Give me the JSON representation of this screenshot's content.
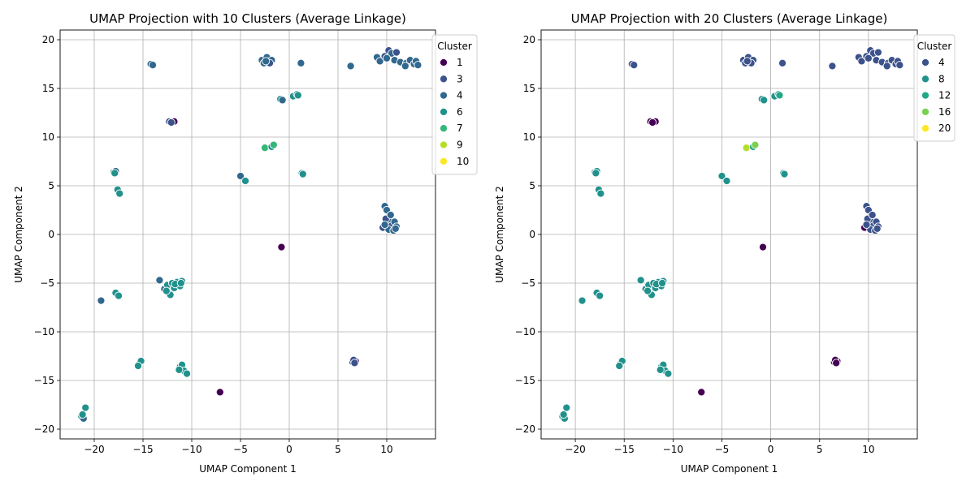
{
  "chart_data": [
    {
      "type": "scatter",
      "title": "UMAP Projection with 10 Clusters (Average Linkage)",
      "xlabel": "UMAP Component 1",
      "ylabel": "UMAP Component 2",
      "xlim": [
        -23.5,
        15
      ],
      "ylim": [
        -21,
        21
      ],
      "xticks": [
        -20,
        -15,
        -10,
        -5,
        0,
        5,
        10
      ],
      "yticks": [
        -20,
        -15,
        -10,
        -5,
        0,
        5,
        10,
        15,
        20
      ],
      "grid": true,
      "legend": {
        "title": "Cluster",
        "placement": "right",
        "entries": [
          {
            "label": "1",
            "color": "#440154"
          },
          {
            "label": "3",
            "color": "#3b528b"
          },
          {
            "label": "4",
            "color": "#31688e"
          },
          {
            "label": "6",
            "color": "#21918c"
          },
          {
            "label": "7",
            "color": "#35b779"
          },
          {
            "label": "9",
            "color": "#b5de2b"
          },
          {
            "label": "10",
            "color": "#fde725"
          }
        ]
      },
      "points": [
        [
          -14.2,
          17.5,
          "#31688e"
        ],
        [
          -14.0,
          17.4,
          "#31688e"
        ],
        [
          -2.8,
          17.9,
          "#31688e"
        ],
        [
          -2.3,
          18.2,
          "#31688e"
        ],
        [
          -2.6,
          17.6,
          "#31688e"
        ],
        [
          -1.8,
          17.9,
          "#31688e"
        ],
        [
          -2.0,
          17.6,
          "#3b528b"
        ],
        [
          -2.4,
          17.8,
          "#31688e"
        ],
        [
          1.2,
          17.6,
          "#31688e"
        ],
        [
          6.3,
          17.3,
          "#31688e"
        ],
        [
          9.0,
          18.2,
          "#31688e"
        ],
        [
          9.3,
          17.8,
          "#31688e"
        ],
        [
          9.8,
          18.3,
          "#3b528b"
        ],
        [
          10.2,
          18.9,
          "#3b528b"
        ],
        [
          10.5,
          18.6,
          "#31688e"
        ],
        [
          10.8,
          17.9,
          "#31688e"
        ],
        [
          11.0,
          18.7,
          "#3b528b"
        ],
        [
          11.4,
          17.7,
          "#31688e"
        ],
        [
          12.0,
          17.6,
          "#31688e"
        ],
        [
          12.4,
          17.9,
          "#31688e"
        ],
        [
          12.8,
          17.5,
          "#31688e"
        ],
        [
          13.0,
          17.8,
          "#31688e"
        ],
        [
          13.2,
          17.4,
          "#31688e"
        ],
        [
          10.0,
          18.1,
          "#31688e"
        ],
        [
          11.9,
          17.3,
          "#31688e"
        ],
        [
          -12.3,
          11.6,
          "#3b528b"
        ],
        [
          -11.8,
          11.6,
          "#440154"
        ],
        [
          -12.1,
          11.5,
          "#3b528b"
        ],
        [
          -0.9,
          13.9,
          "#21918c"
        ],
        [
          -0.7,
          13.8,
          "#31688e"
        ],
        [
          0.4,
          14.2,
          "#21918c"
        ],
        [
          0.8,
          14.4,
          "#21918c"
        ],
        [
          0.9,
          14.3,
          "#21918c"
        ],
        [
          -2.5,
          8.9,
          "#35b779"
        ],
        [
          -1.8,
          9.0,
          "#21918c"
        ],
        [
          -1.6,
          9.2,
          "#35b779"
        ],
        [
          -18.0,
          6.4,
          "#21918c"
        ],
        [
          -17.8,
          6.5,
          "#31688e"
        ],
        [
          -17.9,
          6.3,
          "#21918c"
        ],
        [
          -17.6,
          4.6,
          "#21918c"
        ],
        [
          -17.4,
          4.2,
          "#21918c"
        ],
        [
          -5.0,
          6.0,
          "#31688e"
        ],
        [
          -4.5,
          5.5,
          "#21918c"
        ],
        [
          1.3,
          6.3,
          "#21918c"
        ],
        [
          1.4,
          6.2,
          "#21918c"
        ],
        [
          9.8,
          2.9,
          "#31688e"
        ],
        [
          10.0,
          2.5,
          "#31688e"
        ],
        [
          9.6,
          0.7,
          "#3b528b"
        ],
        [
          10.0,
          1.2,
          "#31688e"
        ],
        [
          10.3,
          1.5,
          "#31688e"
        ],
        [
          10.5,
          0.9,
          "#3b528b"
        ],
        [
          10.8,
          1.3,
          "#31688e"
        ],
        [
          11.0,
          0.8,
          "#31688e"
        ],
        [
          10.2,
          0.5,
          "#31688e"
        ],
        [
          10.7,
          0.4,
          "#31688e"
        ],
        [
          9.9,
          1.6,
          "#3b528b"
        ],
        [
          10.4,
          2.0,
          "#31688e"
        ],
        [
          10.9,
          0.6,
          "#31688e"
        ],
        [
          9.8,
          1.0,
          "#31688e"
        ],
        [
          -0.8,
          -1.3,
          "#440154"
        ],
        [
          -13.3,
          -4.7,
          "#31688e"
        ],
        [
          -12.8,
          -5.6,
          "#31688e"
        ],
        [
          -12.5,
          -5.2,
          "#21918c"
        ],
        [
          -12.2,
          -6.2,
          "#21918c"
        ],
        [
          -12.0,
          -5.0,
          "#21918c"
        ],
        [
          -11.8,
          -5.5,
          "#21918c"
        ],
        [
          -11.5,
          -4.9,
          "#21918c"
        ],
        [
          -11.2,
          -5.3,
          "#21918c"
        ],
        [
          -11.0,
          -4.8,
          "#21918c"
        ],
        [
          -12.6,
          -5.8,
          "#21918c"
        ],
        [
          -11.7,
          -5.1,
          "#21918c"
        ],
        [
          -11.1,
          -5.0,
          "#21918c"
        ],
        [
          -17.8,
          -6.0,
          "#21918c"
        ],
        [
          -17.5,
          -6.3,
          "#21918c"
        ],
        [
          -19.3,
          -6.8,
          "#31688e"
        ],
        [
          -15.4,
          -13.3,
          "#21918c"
        ],
        [
          -15.2,
          -13.0,
          "#21918c"
        ],
        [
          -15.5,
          -13.5,
          "#21918c"
        ],
        [
          -11.2,
          -13.6,
          "#21918c"
        ],
        [
          -11.0,
          -13.4,
          "#21918c"
        ],
        [
          -10.8,
          -14.0,
          "#21918c"
        ],
        [
          -10.5,
          -14.3,
          "#21918c"
        ],
        [
          -11.3,
          -13.9,
          "#21918c"
        ],
        [
          -7.1,
          -16.2,
          "#440154"
        ],
        [
          6.5,
          -13.1,
          "#3b528b"
        ],
        [
          6.8,
          -13.0,
          "#440154"
        ],
        [
          6.6,
          -12.9,
          "#3b528b"
        ],
        [
          6.7,
          -13.2,
          "#3b528b"
        ],
        [
          -21.3,
          -18.7,
          "#21918c"
        ],
        [
          -21.1,
          -18.9,
          "#31688e"
        ],
        [
          -20.9,
          -17.8,
          "#21918c"
        ],
        [
          -21.2,
          -18.5,
          "#21918c"
        ]
      ]
    },
    {
      "type": "scatter",
      "title": "UMAP Projection with 20 Clusters (Average Linkage)",
      "xlabel": "UMAP Component 1",
      "ylabel": "UMAP Component 2",
      "xlim": [
        -23.5,
        15
      ],
      "ylim": [
        -21,
        21
      ],
      "xticks": [
        -20,
        -15,
        -10,
        -5,
        0,
        5,
        10
      ],
      "yticks": [
        -20,
        -15,
        -10,
        -5,
        0,
        5,
        10,
        15,
        20
      ],
      "grid": true,
      "legend": {
        "title": "Cluster",
        "placement": "right",
        "entries": [
          {
            "label": "4",
            "color": "#3b528b"
          },
          {
            "label": "8",
            "color": "#21918c"
          },
          {
            "label": "12",
            "color": "#22a884"
          },
          {
            "label": "16",
            "color": "#7ad151"
          },
          {
            "label": "20",
            "color": "#fde725"
          }
        ]
      },
      "points": [
        [
          -14.2,
          17.5,
          "#3b528b"
        ],
        [
          -14.0,
          17.4,
          "#3b528b"
        ],
        [
          -2.8,
          17.9,
          "#3b528b"
        ],
        [
          -2.3,
          18.2,
          "#3b528b"
        ],
        [
          -2.6,
          17.6,
          "#3b528b"
        ],
        [
          -1.8,
          17.9,
          "#3b528b"
        ],
        [
          -2.0,
          17.6,
          "#3b528b"
        ],
        [
          -2.4,
          17.8,
          "#3b528b"
        ],
        [
          1.2,
          17.6,
          "#3b528b"
        ],
        [
          6.3,
          17.3,
          "#3b528b"
        ],
        [
          9.0,
          18.2,
          "#3b528b"
        ],
        [
          9.3,
          17.8,
          "#3b528b"
        ],
        [
          9.8,
          18.3,
          "#3b528b"
        ],
        [
          10.2,
          18.9,
          "#3b528b"
        ],
        [
          10.5,
          18.6,
          "#3b528b"
        ],
        [
          10.8,
          17.9,
          "#3b528b"
        ],
        [
          11.0,
          18.7,
          "#3b528b"
        ],
        [
          11.4,
          17.7,
          "#3b528b"
        ],
        [
          12.0,
          17.6,
          "#3b528b"
        ],
        [
          12.4,
          17.9,
          "#3b528b"
        ],
        [
          12.8,
          17.5,
          "#3b528b"
        ],
        [
          13.0,
          17.8,
          "#3b528b"
        ],
        [
          13.2,
          17.4,
          "#3b528b"
        ],
        [
          10.0,
          18.1,
          "#3b528b"
        ],
        [
          11.9,
          17.3,
          "#3b528b"
        ],
        [
          -12.3,
          11.6,
          "#440154"
        ],
        [
          -11.8,
          11.6,
          "#440154"
        ],
        [
          -12.1,
          11.5,
          "#440154"
        ],
        [
          -0.9,
          13.9,
          "#21918c"
        ],
        [
          -0.7,
          13.8,
          "#21918c"
        ],
        [
          0.4,
          14.2,
          "#21918c"
        ],
        [
          0.8,
          14.4,
          "#21918c"
        ],
        [
          0.9,
          14.3,
          "#22a884"
        ],
        [
          -2.5,
          8.9,
          "#b5de2b"
        ],
        [
          -1.8,
          9.0,
          "#22a884"
        ],
        [
          -1.6,
          9.2,
          "#7ad151"
        ],
        [
          -18.0,
          6.4,
          "#21918c"
        ],
        [
          -17.8,
          6.5,
          "#21918c"
        ],
        [
          -17.9,
          6.3,
          "#21918c"
        ],
        [
          -17.6,
          4.6,
          "#21918c"
        ],
        [
          -17.4,
          4.2,
          "#21918c"
        ],
        [
          -5.0,
          6.0,
          "#21918c"
        ],
        [
          -4.5,
          5.5,
          "#21918c"
        ],
        [
          1.3,
          6.3,
          "#21918c"
        ],
        [
          1.4,
          6.2,
          "#21918c"
        ],
        [
          9.8,
          2.9,
          "#3b528b"
        ],
        [
          10.0,
          2.5,
          "#3b528b"
        ],
        [
          9.6,
          0.7,
          "#440154"
        ],
        [
          10.0,
          1.2,
          "#3b528b"
        ],
        [
          10.3,
          1.5,
          "#3b528b"
        ],
        [
          10.5,
          0.9,
          "#3b528b"
        ],
        [
          10.8,
          1.3,
          "#3b528b"
        ],
        [
          11.0,
          0.8,
          "#3b528b"
        ],
        [
          10.2,
          0.5,
          "#3b528b"
        ],
        [
          10.7,
          0.4,
          "#3b528b"
        ],
        [
          9.9,
          1.6,
          "#3b528b"
        ],
        [
          10.4,
          2.0,
          "#3b528b"
        ],
        [
          10.9,
          0.6,
          "#3b528b"
        ],
        [
          9.8,
          1.0,
          "#3b528b"
        ],
        [
          -0.8,
          -1.3,
          "#440154"
        ],
        [
          -13.3,
          -4.7,
          "#21918c"
        ],
        [
          -12.8,
          -5.6,
          "#21918c"
        ],
        [
          -12.5,
          -5.2,
          "#21918c"
        ],
        [
          -12.2,
          -6.2,
          "#21918c"
        ],
        [
          -12.0,
          -5.0,
          "#21918c"
        ],
        [
          -11.8,
          -5.5,
          "#21918c"
        ],
        [
          -11.5,
          -4.9,
          "#21918c"
        ],
        [
          -11.2,
          -5.3,
          "#21918c"
        ],
        [
          -11.0,
          -4.8,
          "#21918c"
        ],
        [
          -12.6,
          -5.8,
          "#21918c"
        ],
        [
          -11.7,
          -5.1,
          "#21918c"
        ],
        [
          -11.1,
          -5.0,
          "#21918c"
        ],
        [
          -17.8,
          -6.0,
          "#21918c"
        ],
        [
          -17.5,
          -6.3,
          "#21918c"
        ],
        [
          -19.3,
          -6.8,
          "#21918c"
        ],
        [
          -15.4,
          -13.3,
          "#21918c"
        ],
        [
          -15.2,
          -13.0,
          "#21918c"
        ],
        [
          -15.5,
          -13.5,
          "#21918c"
        ],
        [
          -11.2,
          -13.6,
          "#21918c"
        ],
        [
          -11.0,
          -13.4,
          "#21918c"
        ],
        [
          -10.8,
          -14.0,
          "#21918c"
        ],
        [
          -10.5,
          -14.3,
          "#21918c"
        ],
        [
          -11.3,
          -13.9,
          "#21918c"
        ],
        [
          -7.1,
          -16.2,
          "#440154"
        ],
        [
          6.5,
          -13.1,
          "#440154"
        ],
        [
          6.8,
          -13.0,
          "#440154"
        ],
        [
          6.6,
          -12.9,
          "#440154"
        ],
        [
          6.7,
          -13.2,
          "#440154"
        ],
        [
          -21.3,
          -18.7,
          "#21918c"
        ],
        [
          -21.1,
          -18.9,
          "#21918c"
        ],
        [
          -20.9,
          -17.8,
          "#21918c"
        ],
        [
          -21.2,
          -18.5,
          "#21918c"
        ]
      ]
    }
  ]
}
